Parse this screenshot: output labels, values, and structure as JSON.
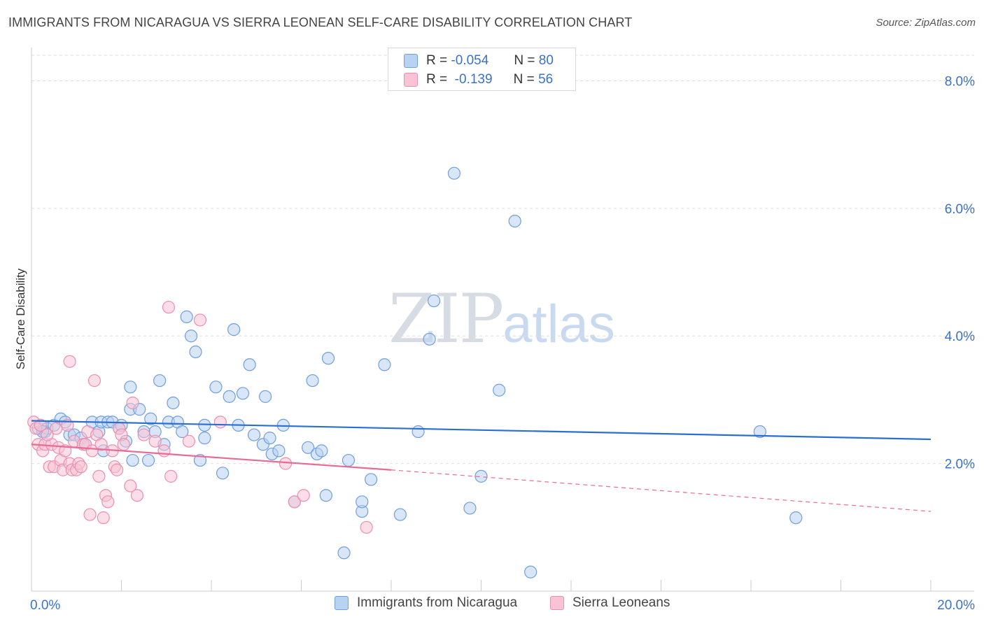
{
  "title": "IMMIGRANTS FROM NICARAGUA VS SIERRA LEONEAN SELF-CARE DISABILITY CORRELATION CHART",
  "source": "Source: ZipAtlas.com",
  "watermark": {
    "zip": "ZIP",
    "atlas": "atlas"
  },
  "legend_top": {
    "rows": [
      {
        "r_label": "R =",
        "r_value": "-0.054",
        "n_label": "N =",
        "n_value": "80"
      },
      {
        "r_label": "R =",
        "r_value": "-0.139",
        "n_label": "N =",
        "n_value": "56"
      }
    ]
  },
  "colors": {
    "blue_fill": "#b8d2f2",
    "blue_stroke": "#6f9fdc",
    "blue_line": "#2a6fd0",
    "pink_fill": "#f8c3d4",
    "pink_stroke": "#eb8fae",
    "pink_line": "#e66b95",
    "grid": "#dddddd",
    "tick_label": "#3a72c8"
  },
  "chart_data": {
    "type": "scatter",
    "title": "IMMIGRANTS FROM NICARAGUA VS SIERRA LEONEAN SELF-CARE DISABILITY CORRELATION CHART",
    "xlabel": "",
    "ylabel": "Self-Care Disability",
    "xlim": [
      0,
      20
    ],
    "ylim": [
      0,
      8.4
    ],
    "x_tick_labels": [
      "0.0%",
      "20.0%"
    ],
    "y_ticks": [
      2,
      4,
      6,
      8
    ],
    "y_tick_labels": [
      "2.0%",
      "4.0%",
      "6.0%",
      "8.0%"
    ],
    "grid": "horizontal dashed",
    "legend_position": "bottom",
    "series": [
      {
        "name": "Immigrants from Nicaragua",
        "color": "#6f9fdc",
        "trend": {
          "x": [
            0,
            20
          ],
          "y": [
            2.67,
            2.38
          ]
        },
        "points": [
          [
            0.15,
            2.55
          ],
          [
            0.2,
            2.6
          ],
          [
            0.3,
            2.5
          ],
          [
            0.35,
            2.55
          ],
          [
            0.5,
            2.6
          ],
          [
            0.65,
            2.7
          ],
          [
            0.75,
            2.65
          ],
          [
            0.85,
            2.45
          ],
          [
            0.95,
            2.45
          ],
          [
            1.1,
            2.4
          ],
          [
            1.2,
            2.3
          ],
          [
            1.35,
            2.65
          ],
          [
            1.5,
            2.5
          ],
          [
            1.55,
            2.65
          ],
          [
            1.6,
            2.2
          ],
          [
            1.7,
            2.65
          ],
          [
            1.8,
            2.65
          ],
          [
            1.95,
            2.55
          ],
          [
            2.0,
            2.6
          ],
          [
            2.2,
            2.85
          ],
          [
            2.1,
            2.35
          ],
          [
            2.2,
            3.2
          ],
          [
            2.25,
            2.05
          ],
          [
            2.4,
            2.85
          ],
          [
            2.5,
            2.5
          ],
          [
            2.6,
            2.05
          ],
          [
            2.65,
            2.7
          ],
          [
            2.75,
            2.5
          ],
          [
            2.85,
            3.3
          ],
          [
            2.95,
            2.3
          ],
          [
            3.05,
            2.65
          ],
          [
            3.15,
            2.95
          ],
          [
            3.25,
            2.65
          ],
          [
            3.35,
            2.5
          ],
          [
            3.45,
            4.3
          ],
          [
            3.55,
            4.0
          ],
          [
            3.65,
            3.75
          ],
          [
            3.75,
            2.05
          ],
          [
            3.85,
            2.4
          ],
          [
            3.85,
            2.6
          ],
          [
            4.1,
            3.2
          ],
          [
            4.25,
            1.85
          ],
          [
            4.4,
            3.05
          ],
          [
            4.5,
            4.1
          ],
          [
            4.6,
            2.6
          ],
          [
            4.7,
            3.1
          ],
          [
            4.85,
            3.55
          ],
          [
            4.95,
            2.45
          ],
          [
            5.15,
            2.3
          ],
          [
            5.2,
            3.05
          ],
          [
            5.3,
            2.4
          ],
          [
            5.35,
            2.15
          ],
          [
            5.5,
            2.2
          ],
          [
            5.6,
            2.6
          ],
          [
            5.85,
            1.4
          ],
          [
            6.15,
            2.25
          ],
          [
            6.25,
            3.3
          ],
          [
            6.35,
            2.15
          ],
          [
            6.45,
            2.2
          ],
          [
            6.6,
            3.65
          ],
          [
            6.55,
            1.5
          ],
          [
            6.95,
            0.6
          ],
          [
            7.05,
            2.05
          ],
          [
            7.35,
            1.25
          ],
          [
            7.35,
            1.4
          ],
          [
            7.55,
            1.75
          ],
          [
            7.85,
            3.55
          ],
          [
            8.2,
            1.2
          ],
          [
            8.6,
            2.5
          ],
          [
            8.85,
            3.95
          ],
          [
            8.95,
            4.55
          ],
          [
            9.4,
            6.55
          ],
          [
            9.75,
            1.3
          ],
          [
            10.0,
            1.8
          ],
          [
            10.4,
            3.15
          ],
          [
            10.75,
            5.8
          ],
          [
            11.1,
            0.3
          ],
          [
            16.2,
            2.5
          ],
          [
            17.0,
            1.15
          ],
          [
            0.25,
            2.5
          ]
        ]
      },
      {
        "name": "Sierra Leoneans",
        "color": "#eb8fae",
        "trend": {
          "x": [
            0,
            8
          ],
          "y": [
            2.3,
            1.9
          ],
          "dashed_to": [
            20,
            1.25
          ]
        },
        "points": [
          [
            0.05,
            2.65
          ],
          [
            0.1,
            2.55
          ],
          [
            0.15,
            2.3
          ],
          [
            0.2,
            2.6
          ],
          [
            0.25,
            2.2
          ],
          [
            0.3,
            2.3
          ],
          [
            0.4,
            1.95
          ],
          [
            0.45,
            2.3
          ],
          [
            0.5,
            1.95
          ],
          [
            0.55,
            2.55
          ],
          [
            0.6,
            2.25
          ],
          [
            0.65,
            2.05
          ],
          [
            0.7,
            1.9
          ],
          [
            0.75,
            2.2
          ],
          [
            0.8,
            2.6
          ],
          [
            0.85,
            2.0
          ],
          [
            0.9,
            1.9
          ],
          [
            0.95,
            2.35
          ],
          [
            1.0,
            1.9
          ],
          [
            1.05,
            2.0
          ],
          [
            1.1,
            1.95
          ],
          [
            1.15,
            2.3
          ],
          [
            1.2,
            2.3
          ],
          [
            1.25,
            2.5
          ],
          [
            1.3,
            1.2
          ],
          [
            1.35,
            2.2
          ],
          [
            1.4,
            3.3
          ],
          [
            1.45,
            2.45
          ],
          [
            1.5,
            1.8
          ],
          [
            1.55,
            2.3
          ],
          [
            1.6,
            1.15
          ],
          [
            1.65,
            1.5
          ],
          [
            1.7,
            1.4
          ],
          [
            1.8,
            2.2
          ],
          [
            1.85,
            1.95
          ],
          [
            1.9,
            1.9
          ],
          [
            1.95,
            2.55
          ],
          [
            2.0,
            2.45
          ],
          [
            2.05,
            2.3
          ],
          [
            2.2,
            1.65
          ],
          [
            2.25,
            2.95
          ],
          [
            2.35,
            1.5
          ],
          [
            2.5,
            2.45
          ],
          [
            2.75,
            2.35
          ],
          [
            2.95,
            2.2
          ],
          [
            3.05,
            4.45
          ],
          [
            3.1,
            1.8
          ],
          [
            3.5,
            2.35
          ],
          [
            3.75,
            4.25
          ],
          [
            4.2,
            2.65
          ],
          [
            5.65,
            2.0
          ],
          [
            5.85,
            1.4
          ],
          [
            6.05,
            1.5
          ],
          [
            7.45,
            1.0
          ],
          [
            0.85,
            3.6
          ],
          [
            0.35,
            2.45
          ]
        ]
      }
    ]
  },
  "legend_bottom": [
    {
      "label": "Immigrants from Nicaragua"
    },
    {
      "label": "Sierra Leoneans"
    }
  ]
}
